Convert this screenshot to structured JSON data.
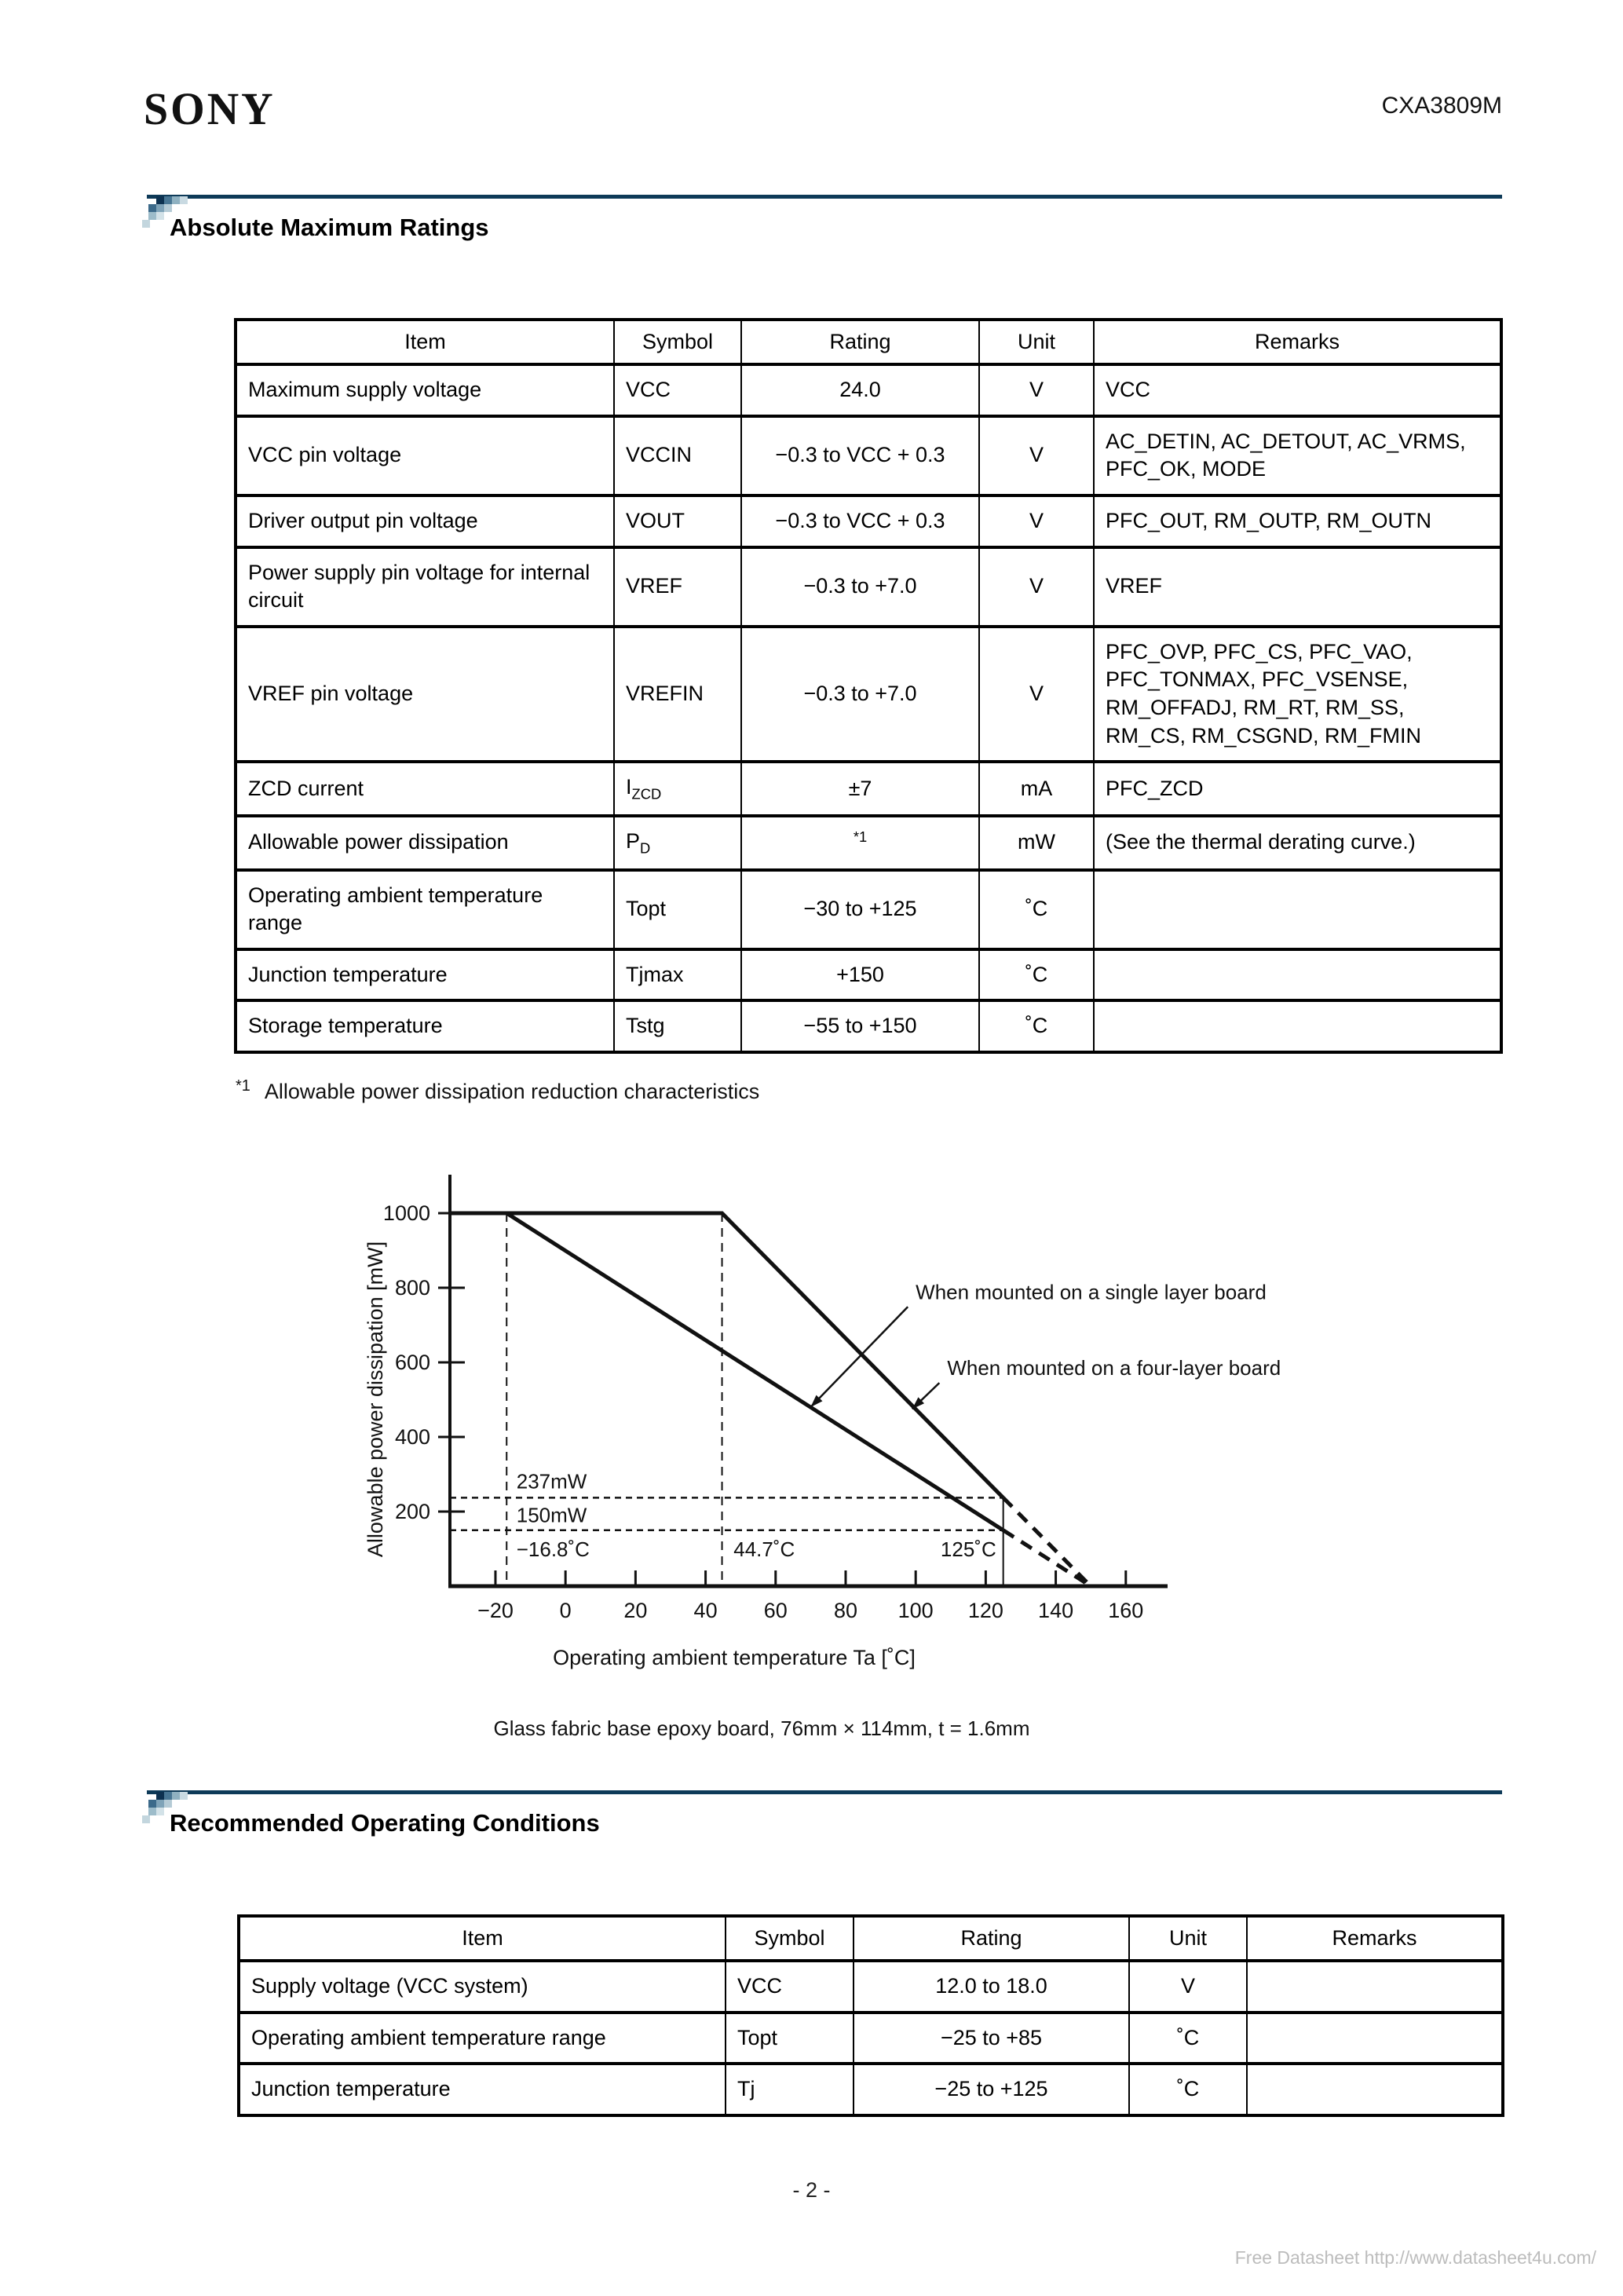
{
  "page": {
    "brand": "SONY",
    "doc_number": "CXA3809M",
    "page_number": "- 2 -",
    "watermark": "Free Datasheet http://www.datasheet4u.com/",
    "accent_color": "#0e3a58"
  },
  "sections": {
    "abs_max": {
      "title": "Absolute Maximum Ratings",
      "table": {
        "headers": [
          "Item",
          "Symbol",
          "Rating",
          "Unit",
          "Remarks"
        ],
        "rows": [
          [
            "Maximum supply voltage",
            "VCC",
            "24.0",
            "V",
            "VCC"
          ],
          [
            "VCC pin voltage",
            "VCCIN",
            "−0.3 to VCC + 0.3",
            "V",
            "AC_DETIN, AC_DETOUT, AC_VRMS, PFC_OK, MODE"
          ],
          [
            "Driver output pin voltage",
            "VOUT",
            "−0.3 to VCC + 0.3",
            "V",
            "PFC_OUT, RM_OUTP, RM_OUTN"
          ],
          [
            "Power supply pin voltage for internal circuit",
            "VREF",
            "−0.3 to +7.0",
            "V",
            "VREF"
          ],
          [
            "VREF pin voltage",
            "VREFIN",
            "−0.3 to +7.0",
            "V",
            "PFC_OVP, PFC_CS, PFC_VAO, PFC_TONMAX, PFC_VSENSE, RM_OFFADJ, RM_RT, RM_SS, RM_CS, RM_CSGND, RM_FMIN"
          ],
          [
            "ZCD current",
            "I~ZCD~",
            "±7",
            "mA",
            "PFC_ZCD"
          ],
          [
            "Allowable power dissipation",
            "P~D~",
            "^*1^",
            "mW",
            "(See the thermal derating curve.)"
          ],
          [
            "Operating ambient temperature range",
            "Topt",
            "−30 to +125",
            "˚C",
            ""
          ],
          [
            "Junction temperature",
            "Tjmax",
            "+150",
            "˚C",
            ""
          ],
          [
            "Storage temperature",
            "Tstg",
            "−55 to +150",
            "˚C",
            ""
          ]
        ]
      },
      "footnote_marker": "*1",
      "footnote_text": "Allowable power dissipation reduction characteristics"
    },
    "rec_op": {
      "title": "Recommended Operating Conditions",
      "table": {
        "headers": [
          "Item",
          "Symbol",
          "Rating",
          "Unit",
          "Remarks"
        ],
        "rows": [
          [
            "Supply voltage (VCC system)",
            "VCC",
            "12.0 to 18.0",
            "V",
            ""
          ],
          [
            "Operating ambient temperature range",
            "Topt",
            "−25 to +85",
            "˚C",
            ""
          ],
          [
            "Junction temperature",
            "Tj",
            "−25 to +125",
            "˚C",
            ""
          ]
        ]
      }
    }
  },
  "chart_data": {
    "type": "line",
    "title": "Allowable power dissipation reduction characteristics",
    "xlabel": "Operating ambient temperature Ta [˚C]",
    "ylabel": "Allowable power dissipation [mW]",
    "caption": "Glass fabric base epoxy board, 76mm × 114mm, t = 1.6mm",
    "xlim": [
      -33,
      172
    ],
    "ylim": [
      0,
      1090
    ],
    "xticks": [
      -20,
      0,
      20,
      40,
      60,
      80,
      100,
      120,
      140,
      160
    ],
    "yticks": [
      200,
      400,
      600,
      800,
      1000
    ],
    "grid": false,
    "series": [
      {
        "name": "When mounted on a single layer board",
        "solid": [
          [
            -33,
            1000
          ],
          [
            -16.8,
            1000
          ],
          [
            125,
            150
          ]
        ],
        "dashed": [
          [
            125,
            150
          ],
          [
            150,
            0
          ]
        ]
      },
      {
        "name": "When mounted on a four-layer board",
        "solid": [
          [
            -33,
            1000
          ],
          [
            44.7,
            1000
          ],
          [
            125,
            237
          ]
        ],
        "dashed": [
          [
            125,
            237
          ],
          [
            150,
            0
          ]
        ]
      }
    ],
    "guides": {
      "v_dashed": [
        -16.8,
        44.7
      ],
      "v_solid": [
        {
          "x": 125,
          "y0": 0,
          "y1": 237
        }
      ],
      "h_dashed": [
        {
          "y": 237,
          "x0": -33,
          "x1": 125
        },
        {
          "y": 150,
          "x0": -33,
          "x1": 125
        }
      ]
    },
    "point_labels": [
      {
        "text": "237mW",
        "x": -14,
        "y": 262,
        "anchor": "start"
      },
      {
        "text": "150mW",
        "x": -14,
        "y": 172,
        "anchor": "start"
      },
      {
        "text": "−16.8˚C",
        "x": -14,
        "y": 80,
        "anchor": "start"
      },
      {
        "text": "44.7˚C",
        "x": 48,
        "y": 80,
        "anchor": "start"
      },
      {
        "text": "125˚C",
        "x": 123,
        "y": 80,
        "anchor": "end"
      }
    ],
    "series_labels": [
      {
        "text": "When mounted on a single layer board",
        "x": 100,
        "y": 770,
        "arrow_to": [
          70,
          480
        ]
      },
      {
        "text": "When mounted on a four-layer board",
        "x": 109,
        "y": 566,
        "arrow_to": [
          99,
          475
        ]
      }
    ]
  }
}
